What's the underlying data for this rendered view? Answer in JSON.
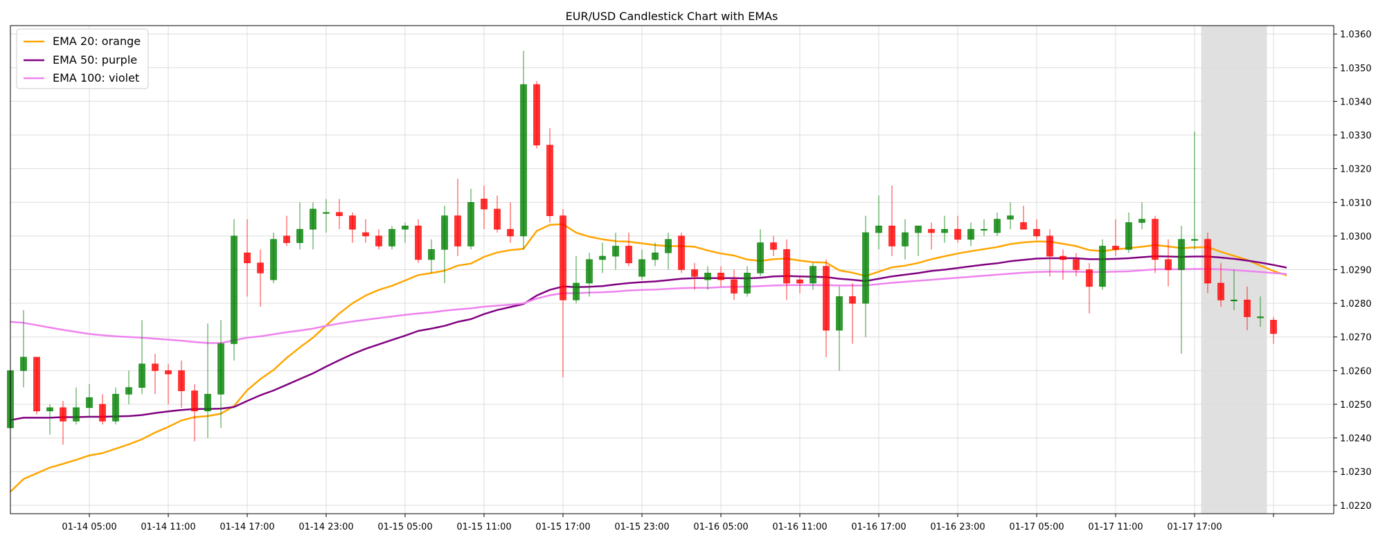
{
  "chart_data": {
    "type": "candlestick",
    "title": "EUR/USD Candlestick Chart with EMAs",
    "xlabel": "",
    "ylabel": "",
    "ylim": [
      1.02175,
      1.03625
    ],
    "grid": true,
    "legend_position": "top-left",
    "y_axis_side": "right",
    "y_ticks": [
      "1.0220",
      "1.0230",
      "1.0240",
      "1.0250",
      "1.0260",
      "1.0270",
      "1.0280",
      "1.0290",
      "1.0300",
      "1.0310",
      "1.0320",
      "1.0330",
      "1.0340",
      "1.0350",
      "1.0360"
    ],
    "x_ticks": [
      {
        "label": "01-14 05:00",
        "index": 6
      },
      {
        "label": "01-14 11:00",
        "index": 12
      },
      {
        "label": "01-14 17:00",
        "index": 18
      },
      {
        "label": "01-14 23:00",
        "index": 24
      },
      {
        "label": "01-15 05:00",
        "index": 30
      },
      {
        "label": "01-15 11:00",
        "index": 36
      },
      {
        "label": "01-15 17:00",
        "index": 42
      },
      {
        "label": "01-15 23:00",
        "index": 48
      },
      {
        "label": "01-16 05:00",
        "index": 54
      },
      {
        "label": "01-16 11:00",
        "index": 60
      },
      {
        "label": "01-16 17:00",
        "index": 66
      },
      {
        "label": "01-16 23:00",
        "index": 72
      },
      {
        "label": "01-17 05:00",
        "index": 78
      },
      {
        "label": "01-17 11:00",
        "index": 84
      },
      {
        "label": "01-17 17:00",
        "index": 90
      },
      {
        "label": "",
        "index": 96
      }
    ],
    "shaded_region": {
      "start_index": 90.5,
      "end_index": 95.5,
      "color": "#e0e0e0"
    },
    "candles": [
      [
        1.0243,
        1.026,
        1.024,
        1.026
      ],
      [
        1.026,
        1.0278,
        1.0255,
        1.0264
      ],
      [
        1.0264,
        1.0264,
        1.0247,
        1.0248
      ],
      [
        1.0248,
        1.025,
        1.0241,
        1.0249
      ],
      [
        1.0249,
        1.0251,
        1.0238,
        1.0245
      ],
      [
        1.0245,
        1.0255,
        1.0244,
        1.0249
      ],
      [
        1.0249,
        1.0256,
        1.0246,
        1.0252
      ],
      [
        1.025,
        1.0253,
        1.0244,
        1.0245
      ],
      [
        1.0245,
        1.0255,
        1.0244,
        1.0253
      ],
      [
        1.0253,
        1.026,
        1.025,
        1.0255
      ],
      [
        1.0255,
        1.0275,
        1.0253,
        1.0262
      ],
      [
        1.0262,
        1.0265,
        1.0253,
        1.026
      ],
      [
        1.026,
        1.0262,
        1.025,
        1.0259
      ],
      [
        1.026,
        1.0263,
        1.0249,
        1.0254
      ],
      [
        1.0254,
        1.0256,
        1.0239,
        1.0248
      ],
      [
        1.0248,
        1.0274,
        1.024,
        1.0253
      ],
      [
        1.0253,
        1.0275,
        1.0243,
        1.0268
      ],
      [
        1.0268,
        1.0305,
        1.0263,
        1.03
      ],
      [
        1.0295,
        1.0305,
        1.0282,
        1.0292
      ],
      [
        1.0292,
        1.0296,
        1.0279,
        1.0289
      ],
      [
        1.0287,
        1.0301,
        1.0286,
        1.0299
      ],
      [
        1.03,
        1.0306,
        1.0297,
        1.0298
      ],
      [
        1.0298,
        1.031,
        1.0296,
        1.0302
      ],
      [
        1.0302,
        1.031,
        1.0296,
        1.0308
      ],
      [
        1.0307,
        1.0311,
        1.0301,
        1.0307
      ],
      [
        1.0307,
        1.0311,
        1.0302,
        1.0306
      ],
      [
        1.0306,
        1.0307,
        1.0298,
        1.0302
      ],
      [
        1.0301,
        1.0305,
        1.0298,
        1.03
      ],
      [
        1.03,
        1.0302,
        1.0296,
        1.0297
      ],
      [
        1.0297,
        1.0303,
        1.0296,
        1.0302
      ],
      [
        1.0302,
        1.0304,
        1.0298,
        1.0303
      ],
      [
        1.0303,
        1.0305,
        1.0292,
        1.0293
      ],
      [
        1.0293,
        1.0299,
        1.0289,
        1.0296
      ],
      [
        1.0296,
        1.0309,
        1.0286,
        1.0306
      ],
      [
        1.0306,
        1.0317,
        1.0294,
        1.0297
      ],
      [
        1.0297,
        1.0314,
        1.0296,
        1.031
      ],
      [
        1.0311,
        1.0315,
        1.0302,
        1.0308
      ],
      [
        1.0308,
        1.0312,
        1.0301,
        1.0302
      ],
      [
        1.0302,
        1.031,
        1.0298,
        1.03
      ],
      [
        1.03,
        1.0355,
        1.0296,
        1.0345
      ],
      [
        1.0345,
        1.0346,
        1.0326,
        1.0327
      ],
      [
        1.0327,
        1.0332,
        1.0304,
        1.0306
      ],
      [
        1.0306,
        1.0308,
        1.0258,
        1.0281
      ],
      [
        1.0281,
        1.0294,
        1.028,
        1.0286
      ],
      [
        1.0286,
        1.0295,
        1.0282,
        1.0293
      ],
      [
        1.0293,
        1.0298,
        1.0289,
        1.0294
      ],
      [
        1.0294,
        1.0301,
        1.029,
        1.0297
      ],
      [
        1.0297,
        1.0301,
        1.0291,
        1.0292
      ],
      [
        1.0288,
        1.0296,
        1.0287,
        1.0293
      ],
      [
        1.0293,
        1.0298,
        1.0291,
        1.0295
      ],
      [
        1.0295,
        1.0301,
        1.029,
        1.0299
      ],
      [
        1.03,
        1.0301,
        1.0289,
        1.029
      ],
      [
        1.029,
        1.0292,
        1.0284,
        1.0288
      ],
      [
        1.0287,
        1.0291,
        1.0284,
        1.0289
      ],
      [
        1.0289,
        1.0291,
        1.0285,
        1.0287
      ],
      [
        1.0287,
        1.029,
        1.0281,
        1.0283
      ],
      [
        1.0283,
        1.0291,
        1.0282,
        1.0289
      ],
      [
        1.0289,
        1.0302,
        1.0288,
        1.0298
      ],
      [
        1.0298,
        1.03,
        1.0294,
        1.0296
      ],
      [
        1.0296,
        1.0299,
        1.0281,
        1.0286
      ],
      [
        1.0287,
        1.0288,
        1.0283,
        1.0286
      ],
      [
        1.0286,
        1.0292,
        1.0284,
        1.0291
      ],
      [
        1.0291,
        1.0293,
        1.0264,
        1.0272
      ],
      [
        1.0272,
        1.0285,
        1.026,
        1.0282
      ],
      [
        1.0282,
        1.0286,
        1.0268,
        1.028
      ],
      [
        1.028,
        1.0306,
        1.027,
        1.0301
      ],
      [
        1.0301,
        1.0312,
        1.0296,
        1.0303
      ],
      [
        1.0303,
        1.0315,
        1.0294,
        1.0297
      ],
      [
        1.0297,
        1.0305,
        1.0293,
        1.0301
      ],
      [
        1.0301,
        1.0303,
        1.0294,
        1.0303
      ],
      [
        1.0302,
        1.0304,
        1.0296,
        1.0301
      ],
      [
        1.0301,
        1.0306,
        1.0298,
        1.0302
      ],
      [
        1.0302,
        1.0306,
        1.0298,
        1.0299
      ],
      [
        1.0299,
        1.0304,
        1.0297,
        1.0302
      ],
      [
        1.0302,
        1.0305,
        1.03,
        1.0302
      ],
      [
        1.0301,
        1.0307,
        1.03,
        1.0305
      ],
      [
        1.0305,
        1.031,
        1.0302,
        1.0306
      ],
      [
        1.0304,
        1.0309,
        1.0303,
        1.0302
      ],
      [
        1.0302,
        1.0305,
        1.0299,
        1.03
      ],
      [
        1.03,
        1.0302,
        1.0288,
        1.0294
      ],
      [
        1.0294,
        1.0296,
        1.0287,
        1.0293
      ],
      [
        1.0293,
        1.0295,
        1.0288,
        1.029
      ],
      [
        1.029,
        1.0292,
        1.0277,
        1.0285
      ],
      [
        1.0285,
        1.0299,
        1.0284,
        1.0297
      ],
      [
        1.0297,
        1.0305,
        1.0294,
        1.0296
      ],
      [
        1.0296,
        1.0307,
        1.0295,
        1.0304
      ],
      [
        1.0304,
        1.031,
        1.0302,
        1.0305
      ],
      [
        1.0305,
        1.0306,
        1.0289,
        1.0293
      ],
      [
        1.0293,
        1.0299,
        1.0285,
        1.029
      ],
      [
        1.029,
        1.0303,
        1.0265,
        1.0299
      ],
      [
        1.0299,
        1.0331,
        1.0296,
        1.0299
      ],
      [
        1.0299,
        1.0301,
        1.0283,
        1.0286
      ],
      [
        1.0286,
        1.0292,
        1.0279,
        1.0281
      ],
      [
        1.0281,
        1.029,
        1.0278,
        1.0281
      ],
      [
        1.0281,
        1.0285,
        1.0272,
        1.0276
      ],
      [
        1.0276,
        1.0282,
        1.0273,
        1.0276
      ],
      [
        1.0275,
        1.0276,
        1.0268,
        1.0271
      ]
    ],
    "series": [
      {
        "name": "EMA 20: orange",
        "color": "#ffa500",
        "values": [
          1.0224,
          1.02278,
          1.02295,
          1.02312,
          1.02323,
          1.02335,
          1.02348,
          1.02355,
          1.02368,
          1.02381,
          1.02396,
          1.02416,
          1.02433,
          1.02452,
          1.02462,
          1.02465,
          1.02472,
          1.02495,
          1.02542,
          1.02575,
          1.02602,
          1.02638,
          1.02669,
          1.02698,
          1.02734,
          1.0277,
          1.028,
          1.02823,
          1.0284,
          1.02852,
          1.02868,
          1.02884,
          1.0289,
          1.02897,
          1.02912,
          1.02918,
          1.02938,
          1.02951,
          1.02958,
          1.02962,
          1.03015,
          1.03033,
          1.03035,
          1.0301,
          1.02998,
          1.0299,
          1.02985,
          1.02983,
          1.02978,
          1.02973,
          1.0297,
          1.0297,
          1.02968,
          1.02957,
          1.02948,
          1.02942,
          1.0293,
          1.02926,
          1.02931,
          1.02933,
          1.02927,
          1.02922,
          1.02921,
          1.02898,
          1.02891,
          1.02881,
          1.02894,
          1.02907,
          1.02912,
          1.0292,
          1.02931,
          1.0294,
          1.02948,
          1.02955,
          1.02961,
          1.02967,
          1.02976,
          1.02981,
          1.02984,
          1.02983,
          1.02977,
          1.0297,
          1.02958,
          1.02955,
          1.0296,
          1.02964,
          1.02968,
          1.02973,
          1.02969,
          1.02964,
          1.02966,
          1.02967,
          1.02953,
          1.02941,
          1.02929,
          1.02912,
          1.02896,
          1.02883
        ]
      },
      {
        "name": "EMA 50: purple",
        "color": "#800080",
        "values": [
          1.02453,
          1.0246,
          1.0246,
          1.0246,
          1.02462,
          1.02462,
          1.02463,
          1.02463,
          1.02464,
          1.02465,
          1.02468,
          1.02474,
          1.02479,
          1.02483,
          1.02486,
          1.02486,
          1.02487,
          1.02492,
          1.0251,
          1.02527,
          1.02541,
          1.02558,
          1.02575,
          1.02592,
          1.02612,
          1.02631,
          1.02649,
          1.02665,
          1.02678,
          1.02691,
          1.02704,
          1.02718,
          1.02725,
          1.02733,
          1.02745,
          1.02753,
          1.02768,
          1.0278,
          1.02789,
          1.02798,
          1.02823,
          1.0284,
          1.0285,
          1.02848,
          1.02849,
          1.02851,
          1.02856,
          1.0286,
          1.02863,
          1.02865,
          1.02869,
          1.02873,
          1.02875,
          1.02875,
          1.02875,
          1.02875,
          1.02874,
          1.02876,
          1.0288,
          1.02881,
          1.0288,
          1.02879,
          1.02878,
          1.02873,
          1.0287,
          1.02866,
          1.02873,
          1.0288,
          1.02885,
          1.0289,
          1.02896,
          1.029,
          1.02905,
          1.0291,
          1.02915,
          1.02919,
          1.02925,
          1.02929,
          1.02933,
          1.02934,
          1.02934,
          1.02934,
          1.02931,
          1.02931,
          1.02932,
          1.02934,
          1.02937,
          1.0294,
          1.02939,
          1.02938,
          1.02939,
          1.02939,
          1.02936,
          1.02932,
          1.02927,
          1.02921,
          1.02914,
          1.02906
        ]
      },
      {
        "name": "EMA 100: violet",
        "color": "#ee82ee",
        "values": [
          1.02745,
          1.02742,
          1.02735,
          1.02728,
          1.02721,
          1.02715,
          1.02709,
          1.02705,
          1.02702,
          1.027,
          1.02698,
          1.02695,
          1.02692,
          1.02689,
          1.02685,
          1.02682,
          1.02682,
          1.0269,
          1.02698,
          1.02702,
          1.02708,
          1.02714,
          1.02719,
          1.02725,
          1.02733,
          1.0274,
          1.02746,
          1.02751,
          1.02756,
          1.02761,
          1.02766,
          1.0277,
          1.02773,
          1.02778,
          1.02782,
          1.02785,
          1.0279,
          1.02793,
          1.02796,
          1.028,
          1.02814,
          1.02824,
          1.0283,
          1.0283,
          1.02832,
          1.02833,
          1.02835,
          1.02838,
          1.0284,
          1.02841,
          1.02843,
          1.02845,
          1.02846,
          1.02846,
          1.02848,
          1.02849,
          1.02849,
          1.02851,
          1.02853,
          1.02854,
          1.02854,
          1.02854,
          1.02854,
          1.02853,
          1.02853,
          1.02853,
          1.02857,
          1.02861,
          1.02864,
          1.02867,
          1.0287,
          1.02873,
          1.02876,
          1.02879,
          1.02882,
          1.02885,
          1.02888,
          1.02891,
          1.02893,
          1.02894,
          1.02894,
          1.02894,
          1.02893,
          1.02893,
          1.02894,
          1.02895,
          1.02898,
          1.02901,
          1.02901,
          1.02901,
          1.02902,
          1.02902,
          1.02901,
          1.02899,
          1.02896,
          1.02893,
          1.0289,
          1.02887
        ]
      }
    ]
  },
  "colors": {
    "up": "#008000",
    "down": "#ff0000",
    "grid": "#dcdcdc",
    "axis": "#000000",
    "shade": "#e0e0e0"
  }
}
